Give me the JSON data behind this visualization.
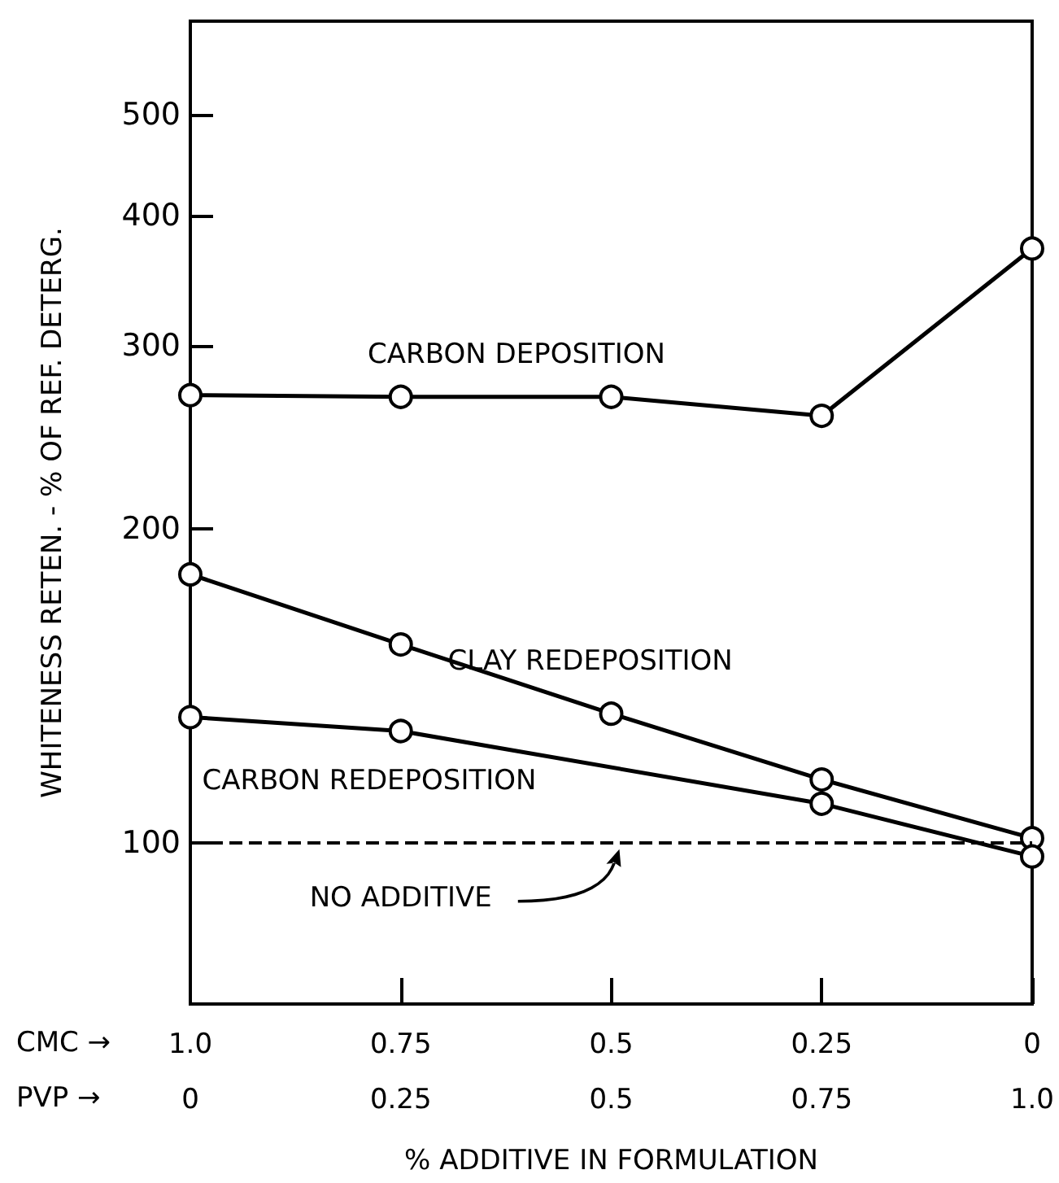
{
  "chart_data": {
    "type": "line",
    "xlabel": "% ADDITIVE IN FORMULATION",
    "ylabel": "WHITENESS RETEN. - % OF REF. DETERG.",
    "categories": [
      "1.0\n0",
      "0.75\n0.25",
      "0.5\n0.5",
      "0.25\n0.75",
      "0\n1.0"
    ],
    "series": [
      {
        "name": "CARBON DEPOSITION",
        "color": "#000000",
        "values": [
          269,
          268,
          268,
          257,
          372
        ]
      },
      {
        "name": "CLAY REDEPOSITION",
        "color": "#000000",
        "values": [
          181,
          155,
          133,
          115,
          101
        ]
      },
      {
        "name": "CARBON REDEPOSITION",
        "color": "#000000",
        "values": [
          132,
          128,
          null,
          109,
          97
        ]
      }
    ],
    "log": "y",
    "ylim": [
      70,
      615
    ],
    "yticks": [
      100,
      200,
      300,
      400,
      500
    ],
    "ref_lines": [
      {
        "axis": "y",
        "value": 100,
        "label": "NO ADDITIVE",
        "color": "#000000",
        "line_style": "dashed"
      }
    ],
    "annotations": [
      "CMC →",
      "PVP →"
    ],
    "marker": "circle",
    "line_style": "solid",
    "grid": false,
    "legend": false
  }
}
